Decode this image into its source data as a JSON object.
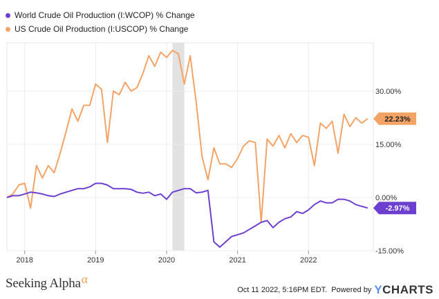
{
  "legend": [
    {
      "label": "World Crude Oil Production (I:WCOP) % Change",
      "color": "#6c3fd1"
    },
    {
      "label": "US Crude Oil Production (I:USCOP) % Change",
      "color": "#f4a366"
    }
  ],
  "footer": {
    "brand": "Seeking Alpha",
    "brand_mark": "α",
    "timestamp": "Oct 11 2022, 5:16PM EDT.",
    "powered_by": "Powered by",
    "provider_y": "Y",
    "provider_rest": "CHARTS"
  },
  "chart_data": {
    "type": "line",
    "x_ticks": [
      "2018",
      "2019",
      "2020",
      "2021",
      "2022"
    ],
    "y_ticks": [
      "30.00%",
      "15.00%",
      "0.00%",
      "-15.00%"
    ],
    "ylim": [
      -15,
      40
    ],
    "grid": true,
    "shaded_period": {
      "start": "2020-02",
      "end": "2020-04"
    },
    "series": [
      {
        "name": "US Crude Oil Production (I:USCOP) % Change",
        "color": "#f4a366",
        "end_label": "22.23%",
        "points": [
          [
            "2017-10",
            0.0
          ],
          [
            "2017-11",
            1.0
          ],
          [
            "2017-12",
            3.5
          ],
          [
            "2018-01",
            4.0
          ],
          [
            "2018-02",
            -3.0
          ],
          [
            "2018-03",
            9.0
          ],
          [
            "2018-04",
            5.5
          ],
          [
            "2018-05",
            9.0
          ],
          [
            "2018-06",
            7.0
          ],
          [
            "2018-07",
            12.5
          ],
          [
            "2018-08",
            18.5
          ],
          [
            "2018-09",
            25.0
          ],
          [
            "2018-10",
            21.5
          ],
          [
            "2018-11",
            26.0
          ],
          [
            "2018-12",
            26.0
          ],
          [
            "2019-01",
            32.0
          ],
          [
            "2019-02",
            30.5
          ],
          [
            "2019-03",
            15.5
          ],
          [
            "2019-04",
            30.0
          ],
          [
            "2019-05",
            29.0
          ],
          [
            "2019-06",
            32.5
          ],
          [
            "2019-07",
            30.0
          ],
          [
            "2019-08",
            31.0
          ],
          [
            "2019-09",
            35.0
          ],
          [
            "2019-10",
            40.0
          ],
          [
            "2019-11",
            37.0
          ],
          [
            "2019-12",
            41.0
          ],
          [
            "2020-01",
            39.5
          ],
          [
            "2020-02",
            41.5
          ],
          [
            "2020-03",
            40.5
          ],
          [
            "2020-04",
            32.0
          ],
          [
            "2020-05",
            40.0
          ],
          [
            "2020-06",
            27.0
          ],
          [
            "2020-07",
            11.5
          ],
          [
            "2020-08",
            5.0
          ],
          [
            "2020-09",
            14.0
          ],
          [
            "2020-10",
            9.5
          ],
          [
            "2020-11",
            9.5
          ],
          [
            "2020-12",
            8.5
          ],
          [
            "2021-01",
            11.0
          ],
          [
            "2021-02",
            14.5
          ],
          [
            "2021-03",
            16.0
          ],
          [
            "2021-04",
            15.5
          ],
          [
            "2021-05",
            -7.0
          ],
          [
            "2021-06",
            16.5
          ],
          [
            "2021-07",
            14.5
          ],
          [
            "2021-08",
            17.5
          ],
          [
            "2021-09",
            14.0
          ],
          [
            "2021-10",
            18.0
          ],
          [
            "2021-11",
            15.5
          ],
          [
            "2021-12",
            17.5
          ],
          [
            "2022-01",
            17.0
          ],
          [
            "2022-02",
            9.0
          ],
          [
            "2022-03",
            21.0
          ],
          [
            "2022-04",
            19.5
          ],
          [
            "2022-05",
            21.5
          ],
          [
            "2022-06",
            12.5
          ],
          [
            "2022-07",
            23.5
          ],
          [
            "2022-08",
            20.0
          ],
          [
            "2022-09",
            22.5
          ],
          [
            "2022-10",
            21.0
          ],
          [
            "2022-11",
            22.23
          ]
        ]
      },
      {
        "name": "World Crude Oil Production (I:WCOP) % Change",
        "color": "#6c3fd1",
        "end_label": "-2.97%",
        "points": [
          [
            "2017-10",
            0.0
          ],
          [
            "2017-11",
            0.5
          ],
          [
            "2017-12",
            0.5
          ],
          [
            "2018-01",
            1.0
          ],
          [
            "2018-02",
            1.5
          ],
          [
            "2018-03",
            1.3
          ],
          [
            "2018-04",
            1.0
          ],
          [
            "2018-05",
            0.5
          ],
          [
            "2018-06",
            0.3
          ],
          [
            "2018-07",
            1.0
          ],
          [
            "2018-08",
            1.5
          ],
          [
            "2018-09",
            2.0
          ],
          [
            "2018-10",
            2.5
          ],
          [
            "2018-11",
            2.5
          ],
          [
            "2018-12",
            3.0
          ],
          [
            "2019-01",
            4.0
          ],
          [
            "2019-02",
            4.0
          ],
          [
            "2019-03",
            3.5
          ],
          [
            "2019-04",
            2.5
          ],
          [
            "2019-05",
            2.5
          ],
          [
            "2019-06",
            2.5
          ],
          [
            "2019-07",
            2.3
          ],
          [
            "2019-08",
            1.5
          ],
          [
            "2019-09",
            1.2
          ],
          [
            "2019-10",
            1.5
          ],
          [
            "2019-11",
            0.5
          ],
          [
            "2019-12",
            1.0
          ],
          [
            "2020-01",
            -0.5
          ],
          [
            "2020-02",
            1.5
          ],
          [
            "2020-03",
            2.0
          ],
          [
            "2020-04",
            2.5
          ],
          [
            "2020-05",
            2.5
          ],
          [
            "2020-06",
            1.3
          ],
          [
            "2020-07",
            1.5
          ],
          [
            "2020-08",
            2.0
          ],
          [
            "2020-09",
            -12.5
          ],
          [
            "2020-10",
            -14.0
          ],
          [
            "2020-11",
            -12.5
          ],
          [
            "2020-12",
            -11.0
          ],
          [
            "2021-01",
            -10.5
          ],
          [
            "2021-02",
            -10.0
          ],
          [
            "2021-03",
            -9.0
          ],
          [
            "2021-04",
            -8.0
          ],
          [
            "2021-05",
            -7.0
          ],
          [
            "2021-06",
            -6.5
          ],
          [
            "2021-07",
            -8.5
          ],
          [
            "2021-08",
            -7.0
          ],
          [
            "2021-09",
            -6.0
          ],
          [
            "2021-10",
            -5.5
          ],
          [
            "2021-11",
            -4.0
          ],
          [
            "2021-12",
            -4.5
          ],
          [
            "2022-01",
            -3.5
          ],
          [
            "2022-02",
            -2.0
          ],
          [
            "2022-03",
            -1.0
          ],
          [
            "2022-04",
            -1.5
          ],
          [
            "2022-05",
            -1.5
          ],
          [
            "2022-06",
            -0.5
          ],
          [
            "2022-07",
            -0.5
          ],
          [
            "2022-08",
            -1.0
          ],
          [
            "2022-09",
            -2.0
          ],
          [
            "2022-10",
            -2.5
          ],
          [
            "2022-11",
            -2.97
          ]
        ]
      }
    ]
  }
}
